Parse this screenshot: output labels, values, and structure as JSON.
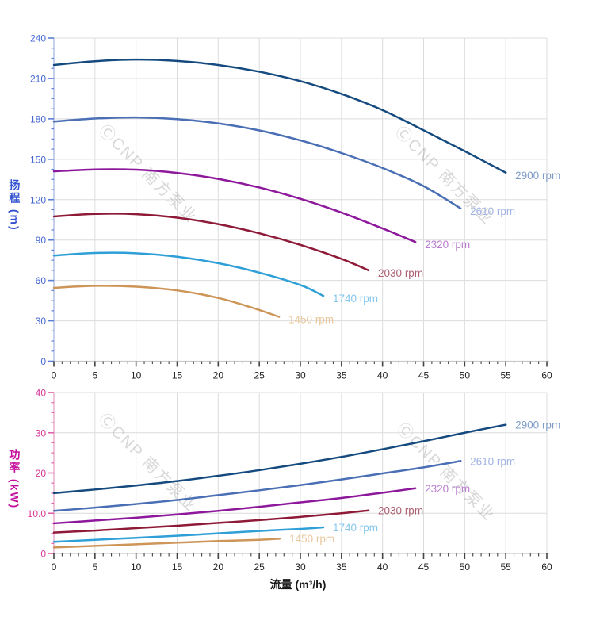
{
  "watermark": {
    "text": "ⒸCNP 南方泵业",
    "color": "rgba(135,135,135,0.32)"
  },
  "palette": {
    "grid": "#dcdcdc",
    "x_axis_line": "#c9c9c9",
    "x_tick": "#444444",
    "x_tick_label": "#222222"
  },
  "chart_data": [
    {
      "type": "line",
      "id": "head",
      "title": "",
      "xlabel": "",
      "ylabel": "扬程 (m)",
      "ylabel_cjk": "扬程",
      "ylabel_unit": "(m)",
      "xlim": [
        0,
        60
      ],
      "ylim": [
        0,
        240
      ],
      "x_tick_step": 5,
      "x_minor_step": 1,
      "y_tick_step": 30,
      "y_minor_step": 7.5,
      "x_tick_labels": [
        "0",
        "5",
        "10",
        "15",
        "20",
        "25",
        "30",
        "35",
        "40",
        "45",
        "50",
        "55",
        "60"
      ],
      "y_tick_labels": [
        "0",
        "30",
        "60",
        "90",
        "120",
        "150",
        "180",
        "210",
        "240"
      ],
      "grid": true,
      "legend_position": "inline-end-of-curve",
      "y_axis_line_color": "#b3c2e6",
      "y_tick_color": "#5c7fd6",
      "y_tick_label_color": "#4468d2",
      "series": [
        {
          "name": "2900 rpm",
          "color": "#154a7f",
          "label_color": "#7e9cc6",
          "points": [
            [
              0,
              220
            ],
            [
              5,
              222.8
            ],
            [
              10,
              224
            ],
            [
              15,
              223
            ],
            [
              20,
              220
            ],
            [
              25,
              215
            ],
            [
              30,
              208
            ],
            [
              35,
              198.5
            ],
            [
              40,
              186.5
            ],
            [
              45,
              171.5
            ],
            [
              50,
              156
            ],
            [
              55,
              140
            ]
          ]
        },
        {
          "name": "2610 rpm",
          "color": "#4a6fb5",
          "label_color": "#9fb2e2",
          "points": [
            [
              0,
              178
            ],
            [
              5,
              180.2
            ],
            [
              10,
              181
            ],
            [
              15,
              179.8
            ],
            [
              20,
              176.6
            ],
            [
              25,
              171.4
            ],
            [
              30,
              164
            ],
            [
              35,
              154.6
            ],
            [
              40,
              143.5
            ],
            [
              45,
              130
            ],
            [
              49.5,
              113.5
            ]
          ]
        },
        {
          "name": "2320 rpm",
          "color": "#8e189c",
          "label_color": "#ba7fd0",
          "points": [
            [
              0,
              141
            ],
            [
              5,
              142.4
            ],
            [
              10,
              142.2
            ],
            [
              15,
              139.8
            ],
            [
              20,
              135.4
            ],
            [
              25,
              129
            ],
            [
              30,
              120.6
            ],
            [
              35,
              110.4
            ],
            [
              40,
              98.6
            ],
            [
              44,
              88.5
            ]
          ]
        },
        {
          "name": "2030 rpm",
          "color": "#8e1a38",
          "label_color": "#ad5f72",
          "points": [
            [
              0,
              107.5
            ],
            [
              5,
              109.4
            ],
            [
              10,
              109.2
            ],
            [
              15,
              106.6
            ],
            [
              20,
              101.8
            ],
            [
              25,
              95
            ],
            [
              30,
              86.4
            ],
            [
              35,
              76
            ],
            [
              38.3,
              67.5
            ]
          ]
        },
        {
          "name": "1740 rpm",
          "color": "#2f9fd8",
          "label_color": "#86c7ec",
          "points": [
            [
              0,
              78.5
            ],
            [
              5,
              80.4
            ],
            [
              10,
              80.2
            ],
            [
              15,
              77.6
            ],
            [
              20,
              72.8
            ],
            [
              25,
              65.8
            ],
            [
              30,
              56.6
            ],
            [
              32.8,
              48.5
            ]
          ]
        },
        {
          "name": "1450 rpm",
          "color": "#cd9557",
          "label_color": "#e9c79c",
          "points": [
            [
              0,
              54.5
            ],
            [
              5,
              56
            ],
            [
              10,
              55.4
            ],
            [
              15,
              52.6
            ],
            [
              20,
              47
            ],
            [
              24,
              40
            ],
            [
              27.4,
              33
            ]
          ]
        }
      ]
    },
    {
      "type": "line",
      "id": "power",
      "title": "",
      "xlabel": "流量 (m³/h)",
      "ylabel": "功率 (kW)",
      "ylabel_cjk": "功率",
      "ylabel_unit": "(kW)",
      "xlim": [
        0,
        60
      ],
      "ylim": [
        0,
        40
      ],
      "x_tick_step": 5,
      "x_minor_step": 1,
      "y_tick_step": 10,
      "y_minor_step": 2.5,
      "x_tick_labels": [
        "0",
        "5",
        "10",
        "15",
        "20",
        "25",
        "30",
        "35",
        "40",
        "45",
        "50",
        "55",
        "60"
      ],
      "y_tick_labels": [
        "0",
        "10.0",
        "20",
        "30",
        "40"
      ],
      "grid": true,
      "legend_position": "inline-end-of-curve",
      "y_axis_line_color": "#eab0cf",
      "y_tick_color": "#e060a8",
      "y_tick_label_color": "#d63896",
      "series": [
        {
          "name": "2900 rpm",
          "color": "#154a7f",
          "label_color": "#7e9cc6",
          "points": [
            [
              0,
              15
            ],
            [
              5,
              15.9
            ],
            [
              10,
              16.9
            ],
            [
              15,
              18
            ],
            [
              20,
              19.3
            ],
            [
              25,
              20.7
            ],
            [
              30,
              22.3
            ],
            [
              35,
              24
            ],
            [
              40,
              25.9
            ],
            [
              45,
              27.9
            ],
            [
              50,
              30
            ],
            [
              55,
              32
            ]
          ]
        },
        {
          "name": "2610 rpm",
          "color": "#4a6fb5",
          "label_color": "#9fb2e2",
          "points": [
            [
              0,
              10.6
            ],
            [
              5,
              11.4
            ],
            [
              10,
              12.3
            ],
            [
              15,
              13.3
            ],
            [
              20,
              14.5
            ],
            [
              25,
              15.7
            ],
            [
              30,
              17
            ],
            [
              35,
              18.4
            ],
            [
              40,
              19.9
            ],
            [
              45,
              21.4
            ],
            [
              49.5,
              23
            ]
          ]
        },
        {
          "name": "2320 rpm",
          "color": "#8e189c",
          "label_color": "#ba7fd0",
          "points": [
            [
              0,
              7.5
            ],
            [
              5,
              8.2
            ],
            [
              10,
              8.9
            ],
            [
              15,
              9.7
            ],
            [
              20,
              10.6
            ],
            [
              25,
              11.6
            ],
            [
              30,
              12.7
            ],
            [
              35,
              13.8
            ],
            [
              40,
              15.1
            ],
            [
              44,
              16.2
            ]
          ]
        },
        {
          "name": "2030 rpm",
          "color": "#8e1a38",
          "label_color": "#ad5f72",
          "points": [
            [
              0,
              5.2
            ],
            [
              5,
              5.7
            ],
            [
              10,
              6.3
            ],
            [
              15,
              6.9
            ],
            [
              20,
              7.6
            ],
            [
              25,
              8.3
            ],
            [
              30,
              9.1
            ],
            [
              35,
              10
            ],
            [
              38.3,
              10.7
            ]
          ]
        },
        {
          "name": "1740 rpm",
          "color": "#2f9fd8",
          "label_color": "#86c7ec",
          "points": [
            [
              0,
              2.9
            ],
            [
              5,
              3.4
            ],
            [
              10,
              3.9
            ],
            [
              15,
              4.4
            ],
            [
              20,
              5
            ],
            [
              25,
              5.6
            ],
            [
              30,
              6.1
            ],
            [
              32.8,
              6.5
            ]
          ]
        },
        {
          "name": "1450 rpm",
          "color": "#cd9557",
          "label_color": "#e9c79c",
          "points": [
            [
              0,
              1.5
            ],
            [
              5,
              1.9
            ],
            [
              10,
              2.3
            ],
            [
              15,
              2.7
            ],
            [
              20,
              3.1
            ],
            [
              25,
              3.4
            ],
            [
              27.5,
              3.7
            ]
          ]
        }
      ]
    }
  ]
}
